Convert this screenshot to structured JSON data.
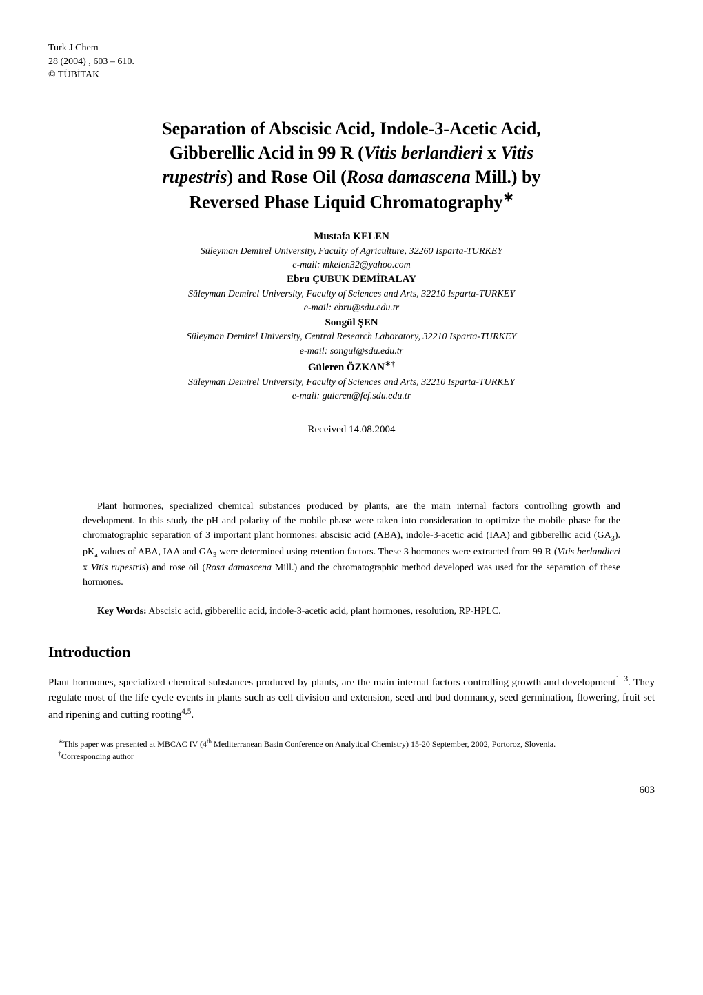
{
  "journal": {
    "name": "Turk J Chem",
    "volume_line": "28 (2004) , 603 – 610.",
    "copyright": "© TÜBİTAK"
  },
  "title": {
    "line1": "Separation of Abscisic Acid, Indole-3-Acetic Acid,",
    "line2_pre": "Gibberellic Acid in 99 R (",
    "line2_ital1": "Vitis berlandieri",
    "line2_mid": " x ",
    "line2_ital2": "Vitis",
    "line3_ital1": "rupestris",
    "line3_mid": ") and Rose Oil (",
    "line3_ital2": "Rosa damascena",
    "line3_post": " Mill.) by",
    "line4": "Reversed Phase Liquid Chromatography",
    "line4_mark": "∗"
  },
  "authors": [
    {
      "name": "Mustafa KELEN",
      "affiliation": "Süleyman Demirel University, Faculty of Agriculture, 32260 Isparta-TURKEY",
      "email": "e-mail: mkelen32@yahoo.com"
    },
    {
      "name": "Ebru ÇUBUK DEMİRALAY",
      "affiliation": "Süleyman Demirel University, Faculty of Sciences and Arts, 32210 Isparta-TURKEY",
      "email": "e-mail: ebru@sdu.edu.tr"
    },
    {
      "name": "Songül ŞEN",
      "affiliation": "Süleyman Demirel University, Central Research Laboratory, 32210 Isparta-TURKEY",
      "email": "e-mail: songul@sdu.edu.tr"
    },
    {
      "name": "Güleren ÖZKAN",
      "name_mark": "∗†",
      "affiliation": "Süleyman Demirel University, Faculty of Sciences and Arts, 32210 Isparta-TURKEY",
      "email": "e-mail: guleren@fef.sdu.edu.tr"
    }
  ],
  "received": "Received 14.08.2004",
  "abstract": {
    "p1a": "Plant hormones, specialized chemical substances produced by plants, are the main internal factors controlling growth and development. In this study the pH and polarity of the mobile phase were taken into consideration to optimize the mobile phase for the chromatographic separation of 3 important plant hormones: abscisic acid (ABA), indole-3-acetic acid (IAA) and gibberellic acid (GA",
    "p1a_sub": "3",
    "p1b": "). pK",
    "p1b_sub": "a",
    "p1c": " values of ABA, IAA and GA",
    "p1c_sub": "3",
    "p1d": " were determined using retention factors. These 3 hormones were extracted from 99 R (",
    "p1_ital1": "Vitis berlandieri",
    "p1e": " x ",
    "p1_ital2": "Vitis rupestris",
    "p1f": ") and rose oil (",
    "p1_ital3": "Rosa damascena",
    "p1g": " Mill.) and the chromatographic method developed was used for the separation of these hormones."
  },
  "keywords": {
    "label": "Key Words:",
    "text": " Abscisic acid, gibberellic acid, indole-3-acetic acid, plant hormones, resolution, RP-HPLC."
  },
  "section_intro": "Introduction",
  "intro": {
    "p1a": "Plant hormones, specialized chemical substances produced by plants, are the main internal factors controlling growth and development",
    "p1_sup1": "1−3",
    "p1b": ". They regulate most of the life cycle events in plants such as cell division and extension, seed and bud dormancy, seed germination, flowering, fruit set and ripening and cutting rooting",
    "p1_sup2": "4,5",
    "p1c": "."
  },
  "footnotes": {
    "f1_mark": "∗",
    "f1_a": "This paper was presented at MBCAC IV (4",
    "f1_sup": "th",
    "f1_b": " Mediterranean Basin Conference on Analytical Chemistry) 15-20 September, 2002, Portoroz, Slovenia.",
    "f2_mark": "†",
    "f2": "Corresponding author"
  },
  "page_number": "603",
  "colors": {
    "text": "#000000",
    "background": "#ffffff"
  },
  "typography": {
    "body_fontsize_pt": 11,
    "title_fontsize_pt": 20,
    "heading_fontsize_pt": 17,
    "abstract_fontsize_pt": 10,
    "footnote_fontsize_pt": 9,
    "font_family": "Times New Roman"
  }
}
